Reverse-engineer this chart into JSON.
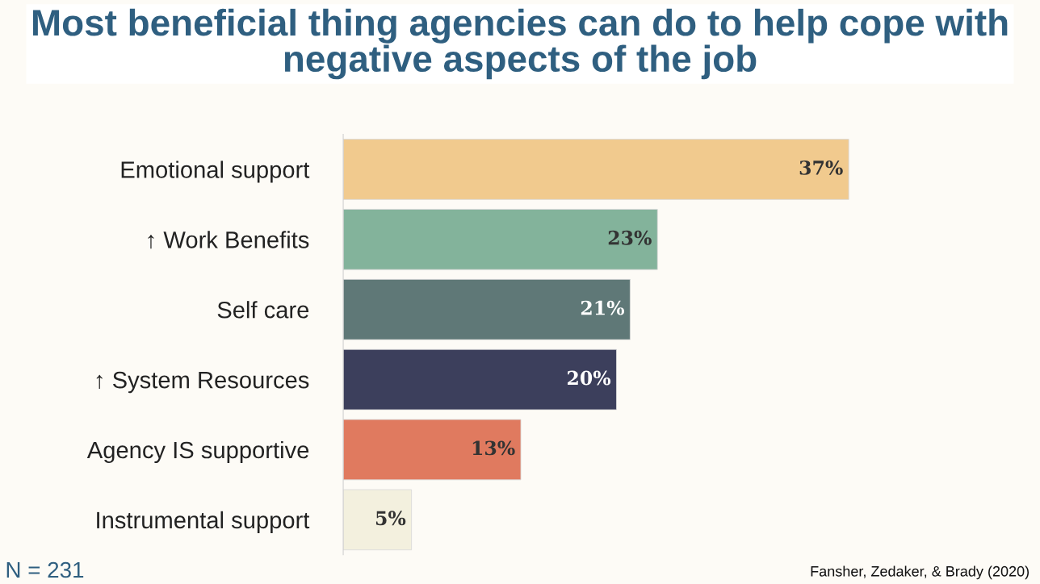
{
  "chart_data": {
    "type": "bar",
    "orientation": "horizontal",
    "title": "Most beneficial thing agencies can do to help cope with negative aspects of the job",
    "categories": [
      "Emotional support",
      "↑ Work Benefits",
      "Self care",
      "↑ System Resources",
      "Agency IS supportive",
      "Instrumental support"
    ],
    "values": [
      37,
      23,
      21,
      20,
      13,
      5
    ],
    "colors": [
      "#f1ca8e",
      "#83b39b",
      "#5f7877",
      "#3c3f5c",
      "#e07a5f",
      "#f3f0de"
    ],
    "value_labels": [
      "37%",
      "23%",
      "21%",
      "20%",
      "13%",
      "5%"
    ],
    "grid": false,
    "annotations": [
      "N = 231",
      "Fansher, Zedaker, & Brady (2020)"
    ]
  }
}
